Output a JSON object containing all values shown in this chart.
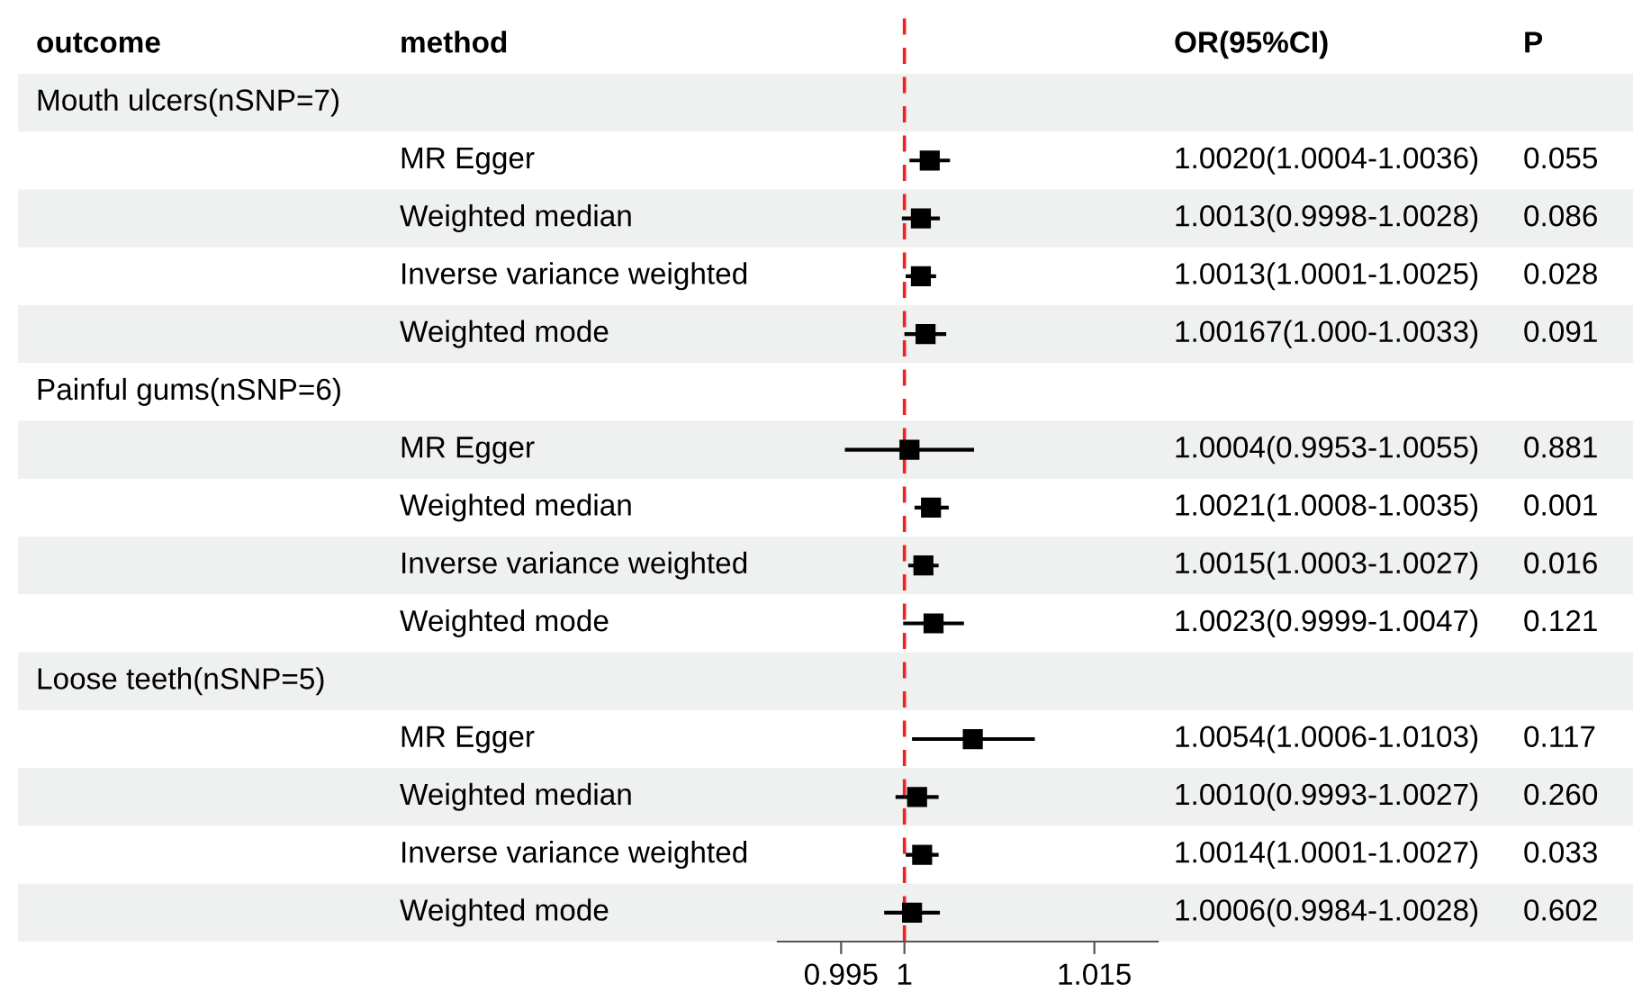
{
  "chart_data": {
    "type": "scatter",
    "categories": [
      null,
      "MR Egger",
      "Weighted median",
      "Inverse variance weighted",
      "Weighted mode",
      null,
      "MR Egger",
      "Weighted median",
      "Inverse variance weighted",
      "Weighted mode",
      null,
      "MR Egger",
      "Weighted median",
      "Inverse variance weighted",
      "Weighted mode"
    ],
    "values": [
      null,
      1.002,
      1.0013,
      1.0013,
      1.00167,
      null,
      1.0004,
      1.0021,
      1.0015,
      1.0023,
      null,
      1.0054,
      1.001,
      1.0014,
      1.0006
    ],
    "errors": [
      null,
      [
        1.0004,
        1.0036
      ],
      [
        0.9998,
        1.0028
      ],
      [
        1.0001,
        1.0025
      ],
      [
        1.0,
        1.0033
      ],
      null,
      [
        0.9953,
        1.0055
      ],
      [
        1.0008,
        1.0035
      ],
      [
        1.0003,
        1.0027
      ],
      [
        0.9999,
        1.0047
      ],
      null,
      [
        1.0006,
        1.0103
      ],
      [
        0.9993,
        1.0027
      ],
      [
        1.0001,
        1.0027
      ],
      [
        0.9984,
        1.0028
      ]
    ],
    "value_labels": [
      null,
      "1.0020(1.0004-1.0036)",
      "1.0013(0.9998-1.0028)",
      "1.0013(1.0001-1.0025)",
      "1.00167(1.000-1.0033)",
      null,
      "1.0004(0.9953-1.0055)",
      "1.0021(1.0008-1.0035)",
      "1.0015(1.0003-1.0027)",
      "1.0023(0.9999-1.0047)",
      null,
      "1.0054(1.0006-1.0103)",
      "1.0010(0.9993-1.0027)",
      "1.0014(1.0001-1.0027)",
      "1.0006(0.9984-1.0028)"
    ],
    "annotations": [
      "outcome",
      "method",
      "OR(95%CI)",
      "P",
      "Mouth ulcers(nSNP=7)",
      "Painful gums(nSNP=6)",
      "Loose teeth(nSNP=5)",
      "0.055",
      "0.086",
      "0.028",
      "0.091",
      "0.881",
      "0.001",
      "0.016",
      "0.121",
      "0.117",
      "0.260",
      "0.033",
      "0.602"
    ],
    "color": "#000000",
    "marker": "square",
    "orientation": "horizontal",
    "xlim": [
      0.99,
      1.02
    ],
    "xticks": [
      0.995,
      1,
      1.015
    ],
    "ref_lines": [
      {
        "axis": "x",
        "value": 1,
        "color": "#ee2222",
        "line_style": "dashed"
      }
    ],
    "grid": false,
    "legend": false
  }
}
